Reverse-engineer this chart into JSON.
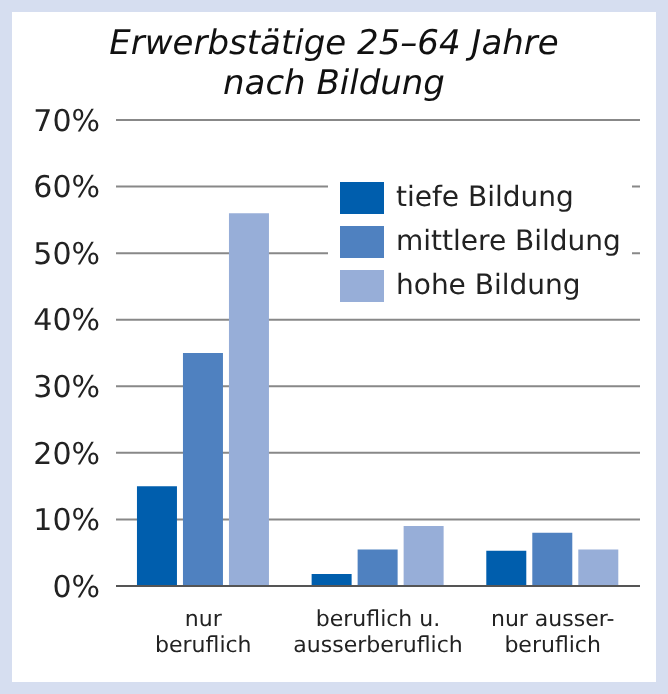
{
  "chart_data": {
    "type": "bar",
    "title": "Erwerbstätige 25–64 Jahre\nnach Bildung",
    "categories": [
      "nur\nberuflich",
      "beruflich u.\nausserberuflich",
      "nur ausser-\nberuflich"
    ],
    "series": [
      {
        "name": "tiefe Bildung",
        "color": "#005ead",
        "values": [
          15,
          1.8,
          5.3
        ]
      },
      {
        "name": "mittlere Bildung",
        "color": "#4f81c0",
        "values": [
          35,
          5.5,
          8
        ]
      },
      {
        "name": "hohe Bildung",
        "color": "#97aed8",
        "values": [
          56,
          9,
          5.5
        ]
      }
    ],
    "ylim": [
      0,
      70
    ],
    "yticks": [
      {
        "value": 0,
        "label": "0%"
      },
      {
        "value": 10,
        "label": "10%"
      },
      {
        "value": 20,
        "label": "20%"
      },
      {
        "value": 30,
        "label": "30%"
      },
      {
        "value": 40,
        "label": "40%"
      },
      {
        "value": 50,
        "label": "50%"
      },
      {
        "value": 60,
        "label": "60%"
      },
      {
        "value": 70,
        "label": "70%"
      }
    ],
    "grid": "y",
    "legend": "top right"
  }
}
